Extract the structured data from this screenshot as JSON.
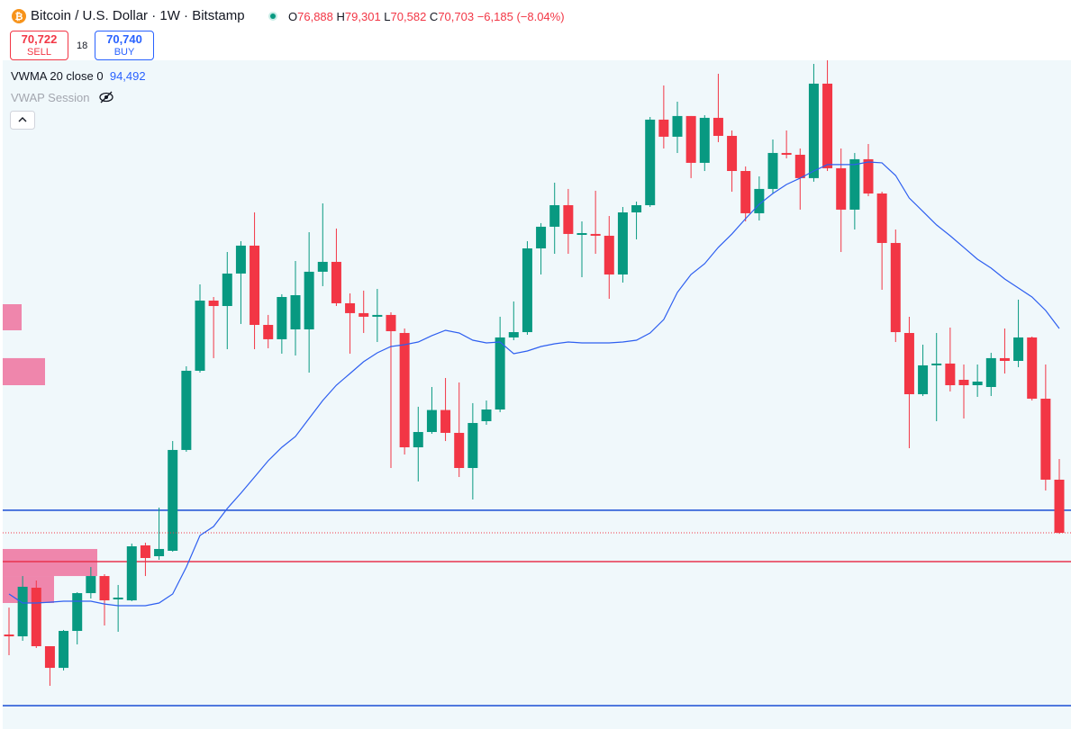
{
  "chart_data": {
    "type": "candlestick",
    "title": "Bitcoin / U.S. Dollar · 1W · Bitstamp",
    "legend": {
      "o_letter": "O",
      "o": {
        "value": 76888,
        "label": "76,888"
      },
      "h_letter": "H",
      "h": {
        "value": 79301,
        "label": "79,301"
      },
      "l_letter": "L",
      "l": {
        "value": 70582,
        "label": "70,582"
      },
      "c_letter": "C",
      "c": {
        "value": 70703,
        "label": "70,703"
      },
      "change": "−6,185 (−8.04%)"
    },
    "trade": {
      "sell_price": "70,722",
      "sell": "SELL",
      "spread": "18",
      "buy_price": "70,740",
      "buy": "BUY"
    },
    "indicators": {
      "vwma_name": "VWMA 20 close 0",
      "vwma_value": {
        "value": 94492,
        "label": "94,492"
      },
      "vwap_name": "VWAP Session"
    },
    "up_color": "#089981",
    "down_color": "#f23645",
    "vwma_color": "#2e5ff0",
    "ylim": [
      47860,
      132740
    ],
    "ohlc": [
      [
        58860,
        62000,
        56450,
        58650
      ],
      [
        58650,
        65670,
        58130,
        64420
      ],
      [
        64310,
        65150,
        57290,
        57500
      ],
      [
        57500,
        57500,
        52890,
        54980
      ],
      [
        54980,
        59390,
        54670,
        59280
      ],
      [
        59280,
        63790,
        57710,
        63680
      ],
      [
        63680,
        66720,
        63050,
        65670
      ],
      [
        65670,
        65880,
        59910,
        62840
      ],
      [
        62950,
        64630,
        59180,
        63160
      ],
      [
        62840,
        69450,
        62740,
        69130
      ],
      [
        69240,
        69550,
        65670,
        67770
      ],
      [
        67980,
        73640,
        67560,
        68820
      ],
      [
        68610,
        81390,
        68500,
        80350
      ],
      [
        80350,
        90090,
        80140,
        89570
      ],
      [
        89570,
        99630,
        89360,
        97740
      ],
      [
        97740,
        98160,
        91040,
        97110
      ],
      [
        97110,
        103400,
        92080,
        100890
      ],
      [
        100890,
        104660,
        95020,
        104140
      ],
      [
        104140,
        108010,
        92080,
        94910
      ],
      [
        94910,
        96070,
        92190,
        93240
      ],
      [
        93240,
        98480,
        91560,
        98160
      ],
      [
        94390,
        102350,
        91350,
        98370
      ],
      [
        94390,
        105710,
        89360,
        101100
      ],
      [
        101100,
        109060,
        99420,
        102250
      ],
      [
        102250,
        106130,
        97110,
        97430
      ],
      [
        97430,
        98580,
        91560,
        96280
      ],
      [
        96280,
        98900,
        93970,
        95860
      ],
      [
        95860,
        99100,
        92920,
        96070
      ],
      [
        96070,
        96380,
        78250,
        94180
      ],
      [
        93970,
        94490,
        79820,
        80660
      ],
      [
        80660,
        85380,
        76680,
        82440
      ],
      [
        82440,
        87680,
        82230,
        85000
      ],
      [
        85000,
        88730,
        81390,
        82340
      ],
      [
        82340,
        88210,
        77200,
        78250
      ],
      [
        78250,
        85800,
        74580,
        83490
      ],
      [
        83700,
        86110,
        83280,
        85060
      ],
      [
        85060,
        95860,
        84750,
        93450
      ],
      [
        93450,
        97640,
        93130,
        94070
      ],
      [
        94070,
        104660,
        93760,
        103820
      ],
      [
        103820,
        106760,
        100780,
        106340
      ],
      [
        106340,
        111470,
        103190,
        108850
      ],
      [
        108850,
        110740,
        103190,
        105500
      ],
      [
        105390,
        106960,
        100470,
        105600
      ],
      [
        105500,
        110530,
        103190,
        105290
      ],
      [
        105290,
        107590,
        97950,
        100780
      ],
      [
        100780,
        108640,
        99840,
        108010
      ],
      [
        108010,
        109270,
        104870,
        108850
      ],
      [
        108850,
        119120,
        108640,
        118810
      ],
      [
        118810,
        122790,
        115450,
        116820
      ],
      [
        116820,
        120900,
        114930,
        119230
      ],
      [
        119230,
        119230,
        112000,
        113780
      ],
      [
        113780,
        119330,
        112830,
        119020
      ],
      [
        119020,
        124150,
        116190,
        116920
      ],
      [
        116920,
        117550,
        110420,
        112830
      ],
      [
        112830,
        113360,
        106960,
        107910
      ],
      [
        107910,
        112200,
        107070,
        110740
      ],
      [
        110740,
        116500,
        110210,
        114930
      ],
      [
        114930,
        117550,
        114300,
        114720
      ],
      [
        114720,
        115450,
        108330,
        112000
      ],
      [
        112000,
        125300,
        111580,
        123000
      ],
      [
        123000,
        125720,
        112830,
        113150
      ],
      [
        113150,
        115450,
        103400,
        108330
      ],
      [
        108330,
        114930,
        106020,
        114200
      ],
      [
        114200,
        115980,
        109900,
        110210
      ],
      [
        110210,
        110420,
        99000,
        104450
      ],
      [
        104450,
        106020,
        92920,
        94070
      ],
      [
        93970,
        95860,
        80560,
        86840
      ],
      [
        86840,
        92610,
        86630,
        90200
      ],
      [
        90200,
        93970,
        83700,
        90410
      ],
      [
        90410,
        94600,
        87160,
        87890
      ],
      [
        88520,
        90300,
        84010,
        87890
      ],
      [
        87890,
        90300,
        86530,
        88310
      ],
      [
        87680,
        91660,
        86630,
        91040
      ],
      [
        91040,
        94490,
        89250,
        90720
      ],
      [
        90720,
        97850,
        89990,
        93450
      ],
      [
        93450,
        93550,
        86110,
        86320
      ],
      [
        86320,
        90300,
        75630,
        76890
      ],
      [
        76888,
        79301,
        70582,
        70703
      ]
    ],
    "vwma": [
      63580,
      62530,
      62530,
      62630,
      62740,
      62740,
      62740,
      62420,
      62220,
      62220,
      62220,
      62530,
      63580,
      66720,
      70390,
      71440,
      73530,
      75320,
      77200,
      79090,
      80660,
      81920,
      84010,
      86110,
      87890,
      89250,
      90620,
      91660,
      92400,
      92610,
      92920,
      93660,
      94280,
      93970,
      93130,
      92820,
      92920,
      91560,
      91870,
      92400,
      92710,
      92920,
      92820,
      92820,
      92820,
      92920,
      93130,
      93970,
      95540,
      98690,
      100780,
      102040,
      103930,
      105500,
      107280,
      108960,
      110210,
      111260,
      112000,
      112830,
      113570,
      113570,
      113570,
      113880,
      113780,
      112310,
      109690,
      108120,
      106550,
      105290,
      103930,
      102560,
      101520,
      100260,
      99210,
      98160,
      96590,
      94492
    ],
    "hlines": [
      {
        "value": 73330,
        "color": "#2a5bd7"
      },
      {
        "value": 67350,
        "color": "#e8344e"
      },
      {
        "value": 50580,
        "color": "#2a5bd7"
      }
    ],
    "zones": [
      {
        "top": 97320,
        "bottom": 94280
      },
      {
        "top": 91040,
        "bottom": 87890
      },
      {
        "top": 68820,
        "bottom": 65670
      },
      {
        "top": 65670,
        "bottom": 62530
      }
    ]
  }
}
